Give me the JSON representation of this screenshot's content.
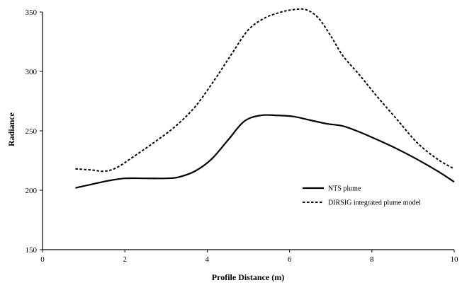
{
  "chart_data": {
    "type": "line",
    "title": "",
    "xlabel": "Profile Distance (m)",
    "ylabel": "Radiance",
    "xlim": [
      0,
      10
    ],
    "ylim": [
      150,
      350
    ],
    "xticks": [
      0,
      2,
      4,
      6,
      8,
      10
    ],
    "yticks": [
      150,
      200,
      250,
      300,
      350
    ],
    "grid": false,
    "legend_position": "right",
    "series": [
      {
        "name": "NTS plume",
        "style": "solid",
        "color": "#000000",
        "x": [
          0.8,
          1.2,
          1.6,
          2.0,
          2.5,
          3.0,
          3.3,
          3.7,
          4.1,
          4.5,
          4.9,
          5.3,
          5.7,
          6.1,
          6.5,
          6.9,
          7.3,
          7.7,
          8.1,
          8.6,
          9.1,
          9.6,
          10.0
        ],
        "y": [
          202,
          205,
          208,
          210,
          210,
          210,
          211,
          216,
          226,
          242,
          258,
          263,
          263,
          262,
          259,
          256,
          254,
          249,
          243,
          235,
          226,
          216,
          207
        ]
      },
      {
        "name": "DIRSIG integrated plume model",
        "style": "dashed",
        "color": "#000000",
        "x": [
          0.8,
          1.2,
          1.5,
          1.8,
          2.2,
          2.7,
          3.2,
          3.7,
          4.2,
          4.6,
          5.0,
          5.4,
          5.8,
          6.1,
          6.4,
          6.7,
          7.0,
          7.3,
          7.7,
          8.1,
          8.6,
          9.1,
          9.6,
          10.0
        ],
        "y": [
          218,
          217,
          216,
          219,
          228,
          240,
          253,
          270,
          294,
          315,
          335,
          345,
          350,
          352,
          352,
          345,
          330,
          313,
          297,
          280,
          260,
          240,
          226,
          218
        ]
      }
    ]
  }
}
